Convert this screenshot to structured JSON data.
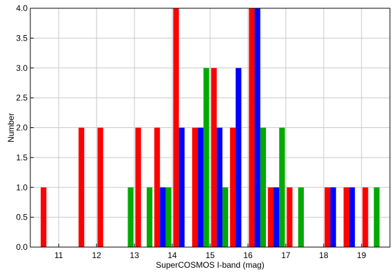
{
  "chart_data": {
    "type": "bar",
    "xlabel": "SuperCOSMOS I-band (mag)",
    "ylabel": "Number",
    "xlim": [
      10.25,
      19.75
    ],
    "ylim": [
      0.0,
      4.0
    ],
    "xticks": [
      11,
      12,
      13,
      14,
      15,
      16,
      17,
      18,
      19
    ],
    "yticks": [
      0.0,
      0.5,
      1.0,
      1.5,
      2.0,
      2.5,
      3.0,
      3.5,
      4.0
    ],
    "grid": true,
    "bar_width": 0.15,
    "series": [
      {
        "color": "#ff0000",
        "bars": [
          {
            "x": 10.6,
            "value": 1.0
          },
          {
            "x": 11.6,
            "value": 2.0
          },
          {
            "x": 12.1,
            "value": 2.0
          },
          {
            "x": 13.1,
            "value": 2.0
          },
          {
            "x": 13.6,
            "value": 2.0
          },
          {
            "x": 14.1,
            "value": 4.0
          },
          {
            "x": 14.6,
            "value": 2.0
          },
          {
            "x": 15.1,
            "value": 3.0
          },
          {
            "x": 15.6,
            "value": 2.0
          },
          {
            "x": 16.1,
            "value": 4.0
          },
          {
            "x": 16.6,
            "value": 1.0
          },
          {
            "x": 17.1,
            "value": 1.0
          },
          {
            "x": 18.1,
            "value": 1.0
          },
          {
            "x": 18.6,
            "value": 1.0
          },
          {
            "x": 19.1,
            "value": 1.0
          }
        ]
      },
      {
        "color": "#00aa00",
        "bars": [
          {
            "x": 12.9,
            "value": 1.0
          },
          {
            "x": 13.4,
            "value": 1.0
          },
          {
            "x": 13.9,
            "value": 1.0
          },
          {
            "x": 14.9,
            "value": 3.0
          },
          {
            "x": 15.4,
            "value": 1.0
          },
          {
            "x": 16.4,
            "value": 2.0
          },
          {
            "x": 16.9,
            "value": 2.0
          },
          {
            "x": 17.4,
            "value": 1.0
          },
          {
            "x": 19.4,
            "value": 1.0
          }
        ]
      },
      {
        "color": "#0000ff",
        "bars": [
          {
            "x": 13.75,
            "value": 1.0
          },
          {
            "x": 14.25,
            "value": 2.0
          },
          {
            "x": 14.75,
            "value": 2.0
          },
          {
            "x": 15.25,
            "value": 2.0
          },
          {
            "x": 15.75,
            "value": 3.0
          },
          {
            "x": 16.25,
            "value": 4.0
          },
          {
            "x": 16.75,
            "value": 1.0
          },
          {
            "x": 18.25,
            "value": 1.0
          },
          {
            "x": 18.75,
            "value": 1.0
          }
        ]
      }
    ]
  }
}
